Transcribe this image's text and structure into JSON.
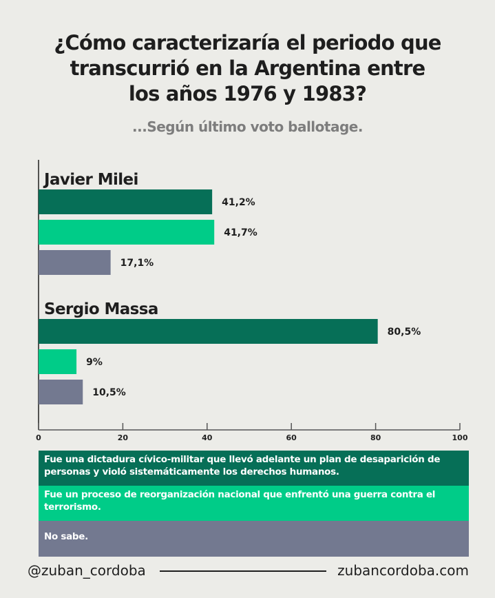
{
  "title_lines": [
    "¿Cómo caracterizaría el periodo que",
    "transcurrió en la Argentina entre",
    "los años 1976 y 1983?"
  ],
  "subtitle": "...Según último voto ballotage.",
  "colors": {
    "dictadura": "#066f57",
    "proceso": "#00cc88",
    "no_sabe": "#737990",
    "background": "#ecece8"
  },
  "chart_data": {
    "type": "bar",
    "orientation": "horizontal",
    "groups": [
      "Javier Milei",
      "Sergio Massa"
    ],
    "series": [
      {
        "name": "Fue una dictadura cívico-militar que llevó adelante un plan de desaparición de personas y violó sistemáticamente los derechos humanos.",
        "values": [
          41.2,
          80.5
        ],
        "labels": [
          "41,2%",
          "80,5%"
        ]
      },
      {
        "name": "Fue un proceso de reorganización nacional que enfrentó una guerra contra el terrorismo.",
        "values": [
          41.7,
          9
        ],
        "labels": [
          "41,7%",
          "9%"
        ]
      },
      {
        "name": "No sabe.",
        "values": [
          17.1,
          10.5
        ],
        "labels": [
          "17,1%",
          "10,5%"
        ]
      }
    ],
    "xlim": [
      0,
      100
    ],
    "xticks": [
      "0",
      "20",
      "40",
      "60",
      "80",
      "100"
    ],
    "legend_placement": "bottom",
    "grid": false
  },
  "footer": {
    "handle": "@zuban_cordoba",
    "website": "zubancordoba.com"
  }
}
